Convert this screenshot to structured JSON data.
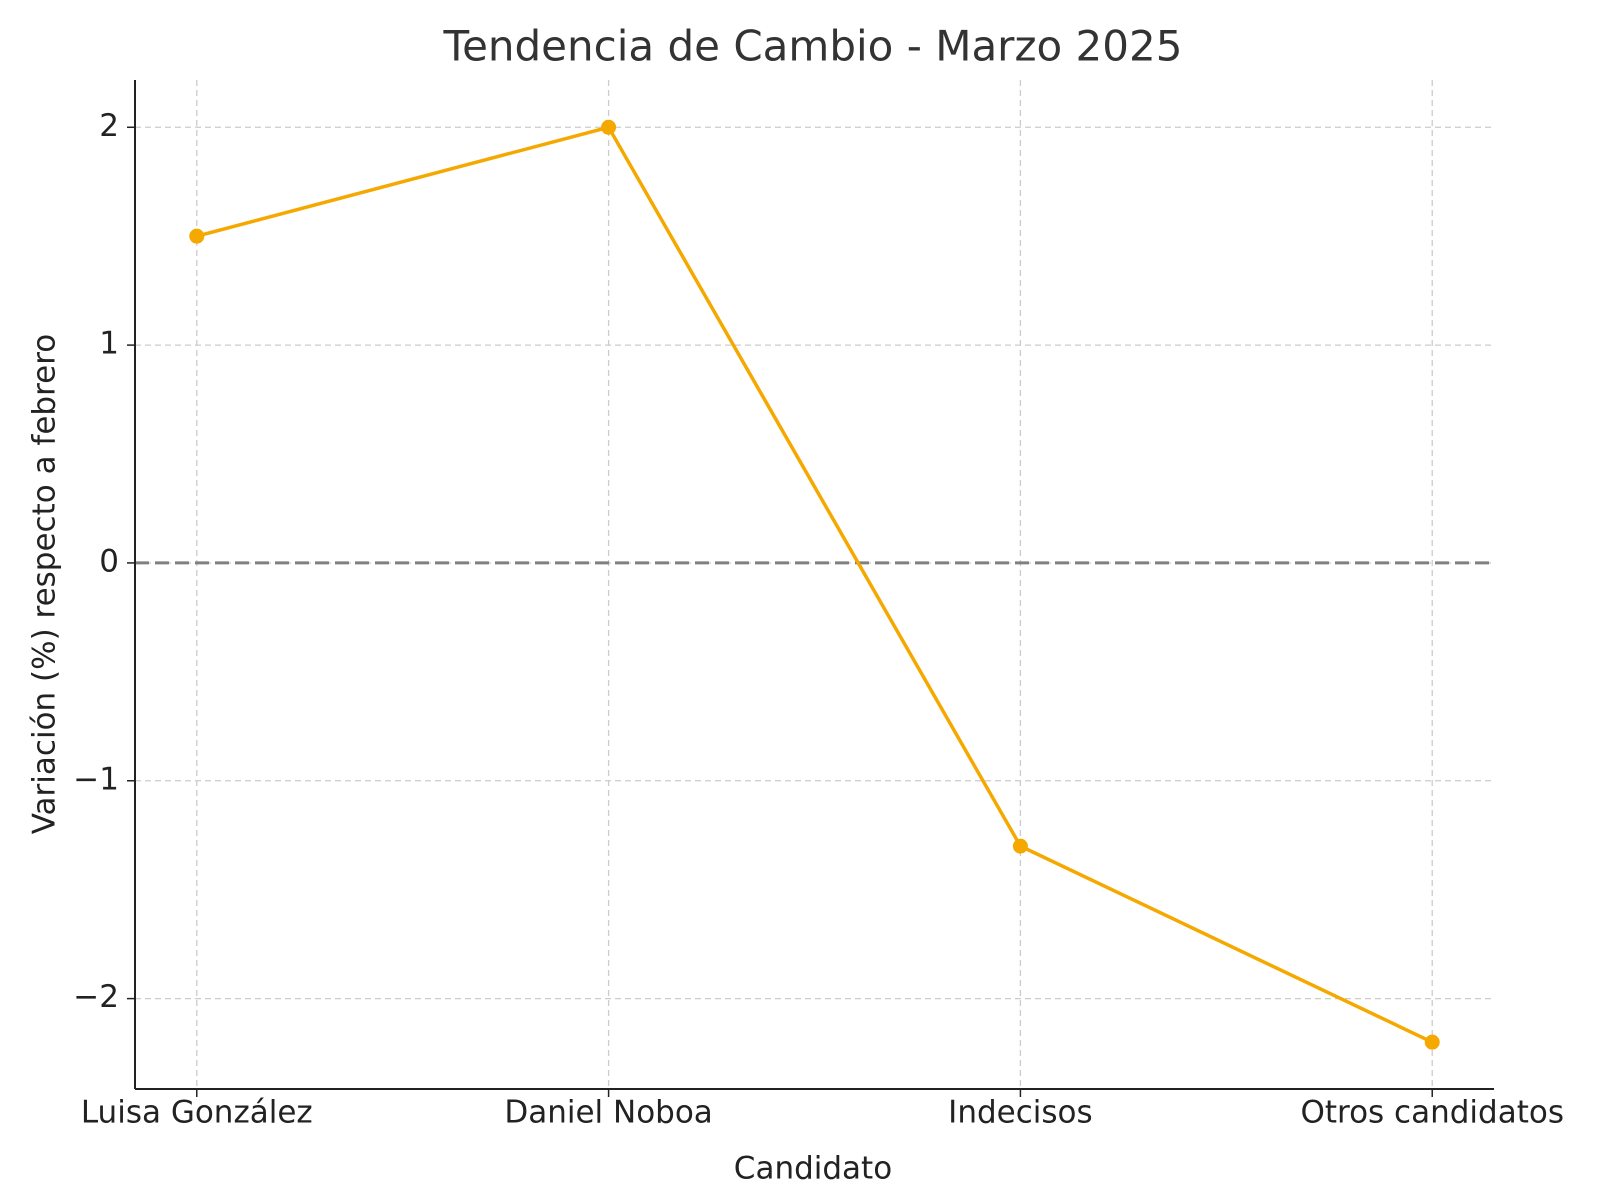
{
  "chart_data": {
    "type": "line",
    "title": "Tendencia de Cambio - Marzo 2025",
    "xlabel": "Candidato",
    "ylabel": "Variación (%) respecto a febrero",
    "categories": [
      "Luisa González",
      "Daniel Noboa",
      "Indecisos",
      "Otros candidatos"
    ],
    "values": [
      1.5,
      2.0,
      -1.3,
      -2.2
    ],
    "color": "#f5a800",
    "ylim": [
      -2.415,
      2.217
    ],
    "yticks": [
      {
        "value": -2,
        "label": "−2"
      },
      {
        "value": -1,
        "label": "−1"
      },
      0,
      1,
      2
    ],
    "grid": true,
    "zero_line": {
      "value": 0,
      "color": "#808080"
    }
  }
}
